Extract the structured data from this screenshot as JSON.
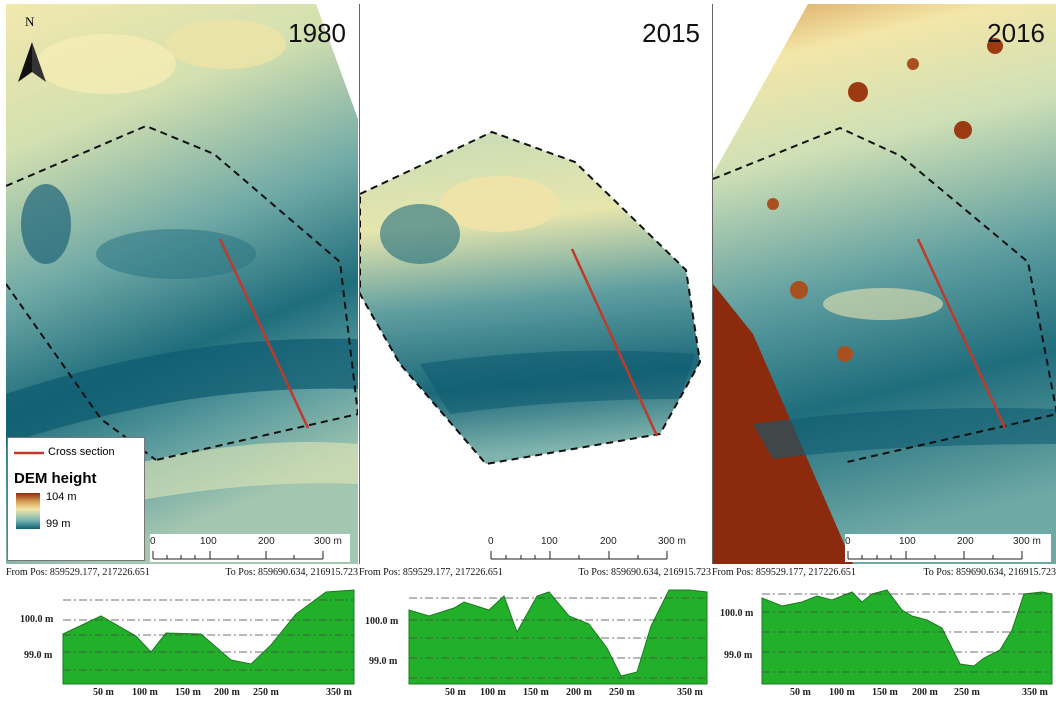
{
  "north_arrow": {
    "label": "N"
  },
  "panels": [
    {
      "year": "1980",
      "profile": {
        "from_pos": "From Pos: 859529.177, 217226.651",
        "to_pos": "To Pos: 859690.634, 216915.723",
        "y_ticks": [
          "100.0 m",
          "99.0 m"
        ],
        "x_ticks": [
          "50 m",
          "100 m",
          "150 m",
          "200 m",
          "250 m",
          "350 m"
        ]
      }
    },
    {
      "year": "2015",
      "profile": {
        "from_pos": "From Pos: 859529.177, 217226.651",
        "to_pos": "To Pos: 859690.634, 216915.723",
        "y_ticks": [
          "100.0 m",
          "99.0 m"
        ],
        "x_ticks": [
          "50 m",
          "100 m",
          "150 m",
          "200 m",
          "250 m",
          "350 m"
        ]
      }
    },
    {
      "year": "2016",
      "profile": {
        "from_pos": "From Pos: 859529.177, 217226.651",
        "to_pos": "To Pos: 859690.634, 216915.723",
        "y_ticks": [
          "100.0 m",
          "99.0 m"
        ],
        "x_ticks": [
          "50 m",
          "100 m",
          "150 m",
          "200 m",
          "250 m",
          "350 m"
        ]
      }
    }
  ],
  "scalebar": {
    "labels": [
      "0",
      "100",
      "200",
      "300 m"
    ]
  },
  "legend": {
    "cross_section_label": "Cross section",
    "dem_title": "DEM height",
    "max_label": "104 m",
    "min_label": "99 m",
    "colors": {
      "cross_section": "#c0392b",
      "high": "#8b2a0c",
      "mid_high": "#f3e6a8",
      "mid": "#7cb8b3",
      "low": "#0e5f73"
    }
  }
}
